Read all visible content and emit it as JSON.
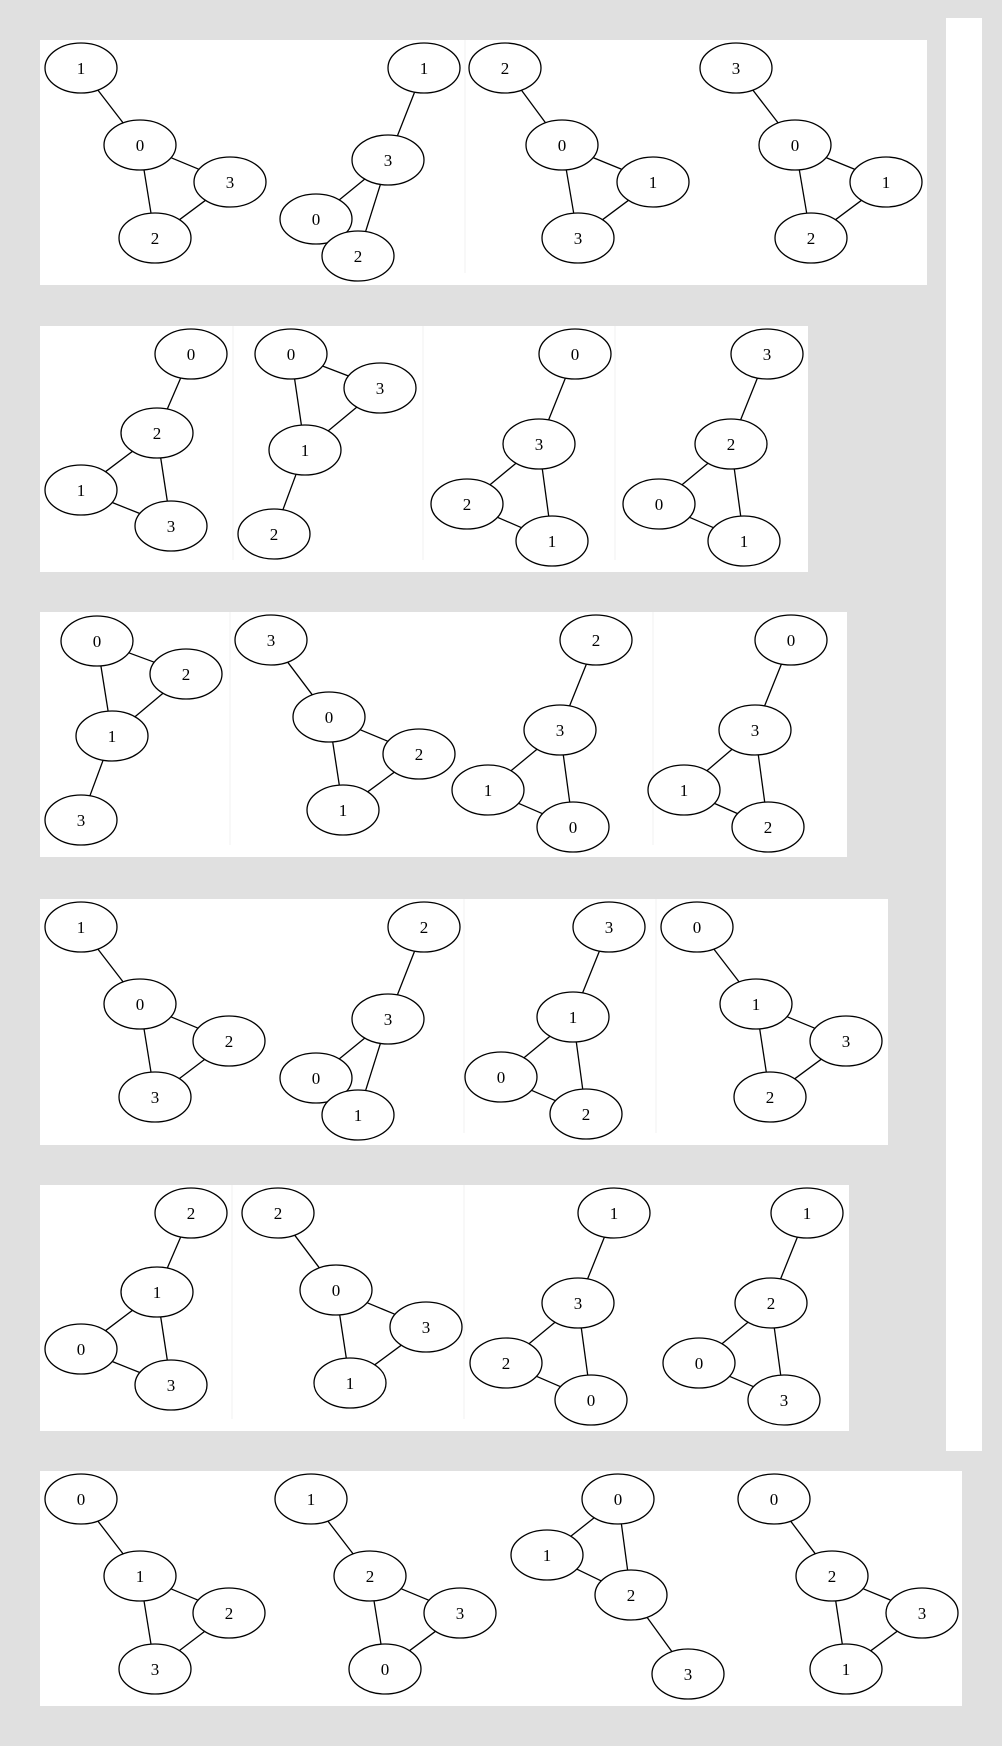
{
  "rows": [
    {
      "graphs": [
        {
          "nodes": [
            {
              "id": "a",
              "label": "1"
            },
            {
              "id": "b",
              "label": "0"
            },
            {
              "id": "c",
              "label": "3"
            },
            {
              "id": "d",
              "label": "2"
            }
          ],
          "edges": [
            [
              "a",
              "b"
            ],
            [
              "b",
              "c"
            ],
            [
              "b",
              "d"
            ],
            [
              "c",
              "d"
            ]
          ]
        },
        {
          "nodes": [
            {
              "id": "a",
              "label": "1"
            },
            {
              "id": "b",
              "label": "3"
            },
            {
              "id": "c",
              "label": "0"
            },
            {
              "id": "d",
              "label": "2"
            }
          ],
          "edges": [
            [
              "a",
              "b"
            ],
            [
              "b",
              "c"
            ],
            [
              "b",
              "d"
            ],
            [
              "c",
              "d"
            ]
          ]
        },
        {
          "nodes": [
            {
              "id": "a",
              "label": "2"
            },
            {
              "id": "b",
              "label": "0"
            },
            {
              "id": "c",
              "label": "1"
            },
            {
              "id": "d",
              "label": "3"
            }
          ],
          "edges": [
            [
              "a",
              "b"
            ],
            [
              "b",
              "c"
            ],
            [
              "b",
              "d"
            ],
            [
              "c",
              "d"
            ]
          ]
        },
        {
          "nodes": [
            {
              "id": "a",
              "label": "3"
            },
            {
              "id": "b",
              "label": "0"
            },
            {
              "id": "c",
              "label": "1"
            },
            {
              "id": "d",
              "label": "2"
            }
          ],
          "edges": [
            [
              "a",
              "b"
            ],
            [
              "b",
              "c"
            ],
            [
              "b",
              "d"
            ],
            [
              "c",
              "d"
            ]
          ]
        }
      ]
    },
    {
      "graphs": [
        {
          "nodes": [
            {
              "id": "a",
              "label": "0"
            },
            {
              "id": "b",
              "label": "2"
            },
            {
              "id": "c",
              "label": "1"
            },
            {
              "id": "d",
              "label": "3"
            }
          ],
          "edges": [
            [
              "a",
              "b"
            ],
            [
              "b",
              "c"
            ],
            [
              "b",
              "d"
            ],
            [
              "c",
              "d"
            ]
          ]
        },
        {
          "nodes": [
            {
              "id": "a",
              "label": "0"
            },
            {
              "id": "b",
              "label": "3"
            },
            {
              "id": "c",
              "label": "1"
            },
            {
              "id": "d",
              "label": "2"
            }
          ],
          "edges": [
            [
              "a",
              "b"
            ],
            [
              "a",
              "c"
            ],
            [
              "b",
              "c"
            ],
            [
              "c",
              "d"
            ]
          ]
        },
        {
          "nodes": [
            {
              "id": "a",
              "label": "0"
            },
            {
              "id": "b",
              "label": "3"
            },
            {
              "id": "c",
              "label": "2"
            },
            {
              "id": "d",
              "label": "1"
            }
          ],
          "edges": [
            [
              "a",
              "b"
            ],
            [
              "b",
              "c"
            ],
            [
              "b",
              "d"
            ],
            [
              "c",
              "d"
            ]
          ]
        },
        {
          "nodes": [
            {
              "id": "a",
              "label": "3"
            },
            {
              "id": "b",
              "label": "2"
            },
            {
              "id": "c",
              "label": "0"
            },
            {
              "id": "d",
              "label": "1"
            }
          ],
          "edges": [
            [
              "a",
              "b"
            ],
            [
              "b",
              "c"
            ],
            [
              "b",
              "d"
            ],
            [
              "c",
              "d"
            ]
          ]
        }
      ]
    },
    {
      "graphs": [
        {
          "nodes": [
            {
              "id": "a",
              "label": "0"
            },
            {
              "id": "b",
              "label": "2"
            },
            {
              "id": "c",
              "label": "1"
            },
            {
              "id": "d",
              "label": "3"
            }
          ],
          "edges": [
            [
              "a",
              "b"
            ],
            [
              "a",
              "c"
            ],
            [
              "b",
              "c"
            ],
            [
              "c",
              "d"
            ]
          ]
        },
        {
          "nodes": [
            {
              "id": "a",
              "label": "3"
            },
            {
              "id": "b",
              "label": "0"
            },
            {
              "id": "c",
              "label": "2"
            },
            {
              "id": "d",
              "label": "1"
            }
          ],
          "edges": [
            [
              "a",
              "b"
            ],
            [
              "b",
              "c"
            ],
            [
              "b",
              "d"
            ],
            [
              "c",
              "d"
            ]
          ]
        },
        {
          "nodes": [
            {
              "id": "a",
              "label": "2"
            },
            {
              "id": "b",
              "label": "3"
            },
            {
              "id": "c",
              "label": "1"
            },
            {
              "id": "d",
              "label": "0"
            }
          ],
          "edges": [
            [
              "a",
              "b"
            ],
            [
              "b",
              "c"
            ],
            [
              "b",
              "d"
            ],
            [
              "c",
              "d"
            ]
          ]
        },
        {
          "nodes": [
            {
              "id": "a",
              "label": "0"
            },
            {
              "id": "b",
              "label": "3"
            },
            {
              "id": "c",
              "label": "1"
            },
            {
              "id": "d",
              "label": "2"
            }
          ],
          "edges": [
            [
              "a",
              "b"
            ],
            [
              "b",
              "c"
            ],
            [
              "b",
              "d"
            ],
            [
              "c",
              "d"
            ]
          ]
        }
      ]
    },
    {
      "graphs": [
        {
          "nodes": [
            {
              "id": "a",
              "label": "1"
            },
            {
              "id": "b",
              "label": "0"
            },
            {
              "id": "c",
              "label": "2"
            },
            {
              "id": "d",
              "label": "3"
            }
          ],
          "edges": [
            [
              "a",
              "b"
            ],
            [
              "b",
              "c"
            ],
            [
              "b",
              "d"
            ],
            [
              "c",
              "d"
            ]
          ]
        },
        {
          "nodes": [
            {
              "id": "a",
              "label": "2"
            },
            {
              "id": "b",
              "label": "3"
            },
            {
              "id": "c",
              "label": "0"
            },
            {
              "id": "d",
              "label": "1"
            }
          ],
          "edges": [
            [
              "a",
              "b"
            ],
            [
              "b",
              "c"
            ],
            [
              "b",
              "d"
            ],
            [
              "c",
              "d"
            ]
          ]
        },
        {
          "nodes": [
            {
              "id": "a",
              "label": "3"
            },
            {
              "id": "b",
              "label": "1"
            },
            {
              "id": "c",
              "label": "0"
            },
            {
              "id": "d",
              "label": "2"
            }
          ],
          "edges": [
            [
              "a",
              "b"
            ],
            [
              "b",
              "c"
            ],
            [
              "b",
              "d"
            ],
            [
              "c",
              "d"
            ]
          ]
        },
        {
          "nodes": [
            {
              "id": "a",
              "label": "0"
            },
            {
              "id": "b",
              "label": "1"
            },
            {
              "id": "c",
              "label": "3"
            },
            {
              "id": "d",
              "label": "2"
            }
          ],
          "edges": [
            [
              "a",
              "b"
            ],
            [
              "b",
              "c"
            ],
            [
              "b",
              "d"
            ],
            [
              "c",
              "d"
            ]
          ]
        }
      ]
    },
    {
      "graphs": [
        {
          "nodes": [
            {
              "id": "a",
              "label": "2"
            },
            {
              "id": "b",
              "label": "1"
            },
            {
              "id": "c",
              "label": "0"
            },
            {
              "id": "d",
              "label": "3"
            }
          ],
          "edges": [
            [
              "a",
              "b"
            ],
            [
              "b",
              "c"
            ],
            [
              "b",
              "d"
            ],
            [
              "c",
              "d"
            ]
          ]
        },
        {
          "nodes": [
            {
              "id": "a",
              "label": "2"
            },
            {
              "id": "b",
              "label": "0"
            },
            {
              "id": "c",
              "label": "3"
            },
            {
              "id": "d",
              "label": "1"
            }
          ],
          "edges": [
            [
              "a",
              "b"
            ],
            [
              "b",
              "c"
            ],
            [
              "b",
              "d"
            ],
            [
              "c",
              "d"
            ]
          ]
        },
        {
          "nodes": [
            {
              "id": "a",
              "label": "1"
            },
            {
              "id": "b",
              "label": "3"
            },
            {
              "id": "c",
              "label": "2"
            },
            {
              "id": "d",
              "label": "0"
            }
          ],
          "edges": [
            [
              "a",
              "b"
            ],
            [
              "b",
              "c"
            ],
            [
              "b",
              "d"
            ],
            [
              "c",
              "d"
            ]
          ]
        },
        {
          "nodes": [
            {
              "id": "a",
              "label": "1"
            },
            {
              "id": "b",
              "label": "2"
            },
            {
              "id": "c",
              "label": "0"
            },
            {
              "id": "d",
              "label": "3"
            }
          ],
          "edges": [
            [
              "a",
              "b"
            ],
            [
              "b",
              "c"
            ],
            [
              "b",
              "d"
            ],
            [
              "c",
              "d"
            ]
          ]
        }
      ]
    },
    {
      "graphs": [
        {
          "nodes": [
            {
              "id": "a",
              "label": "0"
            },
            {
              "id": "b",
              "label": "1"
            },
            {
              "id": "c",
              "label": "2"
            },
            {
              "id": "d",
              "label": "3"
            }
          ],
          "edges": [
            [
              "a",
              "b"
            ],
            [
              "b",
              "c"
            ],
            [
              "b",
              "d"
            ],
            [
              "c",
              "d"
            ]
          ]
        },
        {
          "nodes": [
            {
              "id": "a",
              "label": "1"
            },
            {
              "id": "b",
              "label": "2"
            },
            {
              "id": "c",
              "label": "3"
            },
            {
              "id": "d",
              "label": "0"
            }
          ],
          "edges": [
            [
              "a",
              "b"
            ],
            [
              "b",
              "c"
            ],
            [
              "b",
              "d"
            ],
            [
              "c",
              "d"
            ]
          ]
        },
        {
          "nodes": [
            {
              "id": "a",
              "label": "0"
            },
            {
              "id": "b",
              "label": "1"
            },
            {
              "id": "c",
              "label": "2"
            },
            {
              "id": "d",
              "label": "3"
            }
          ],
          "edges": [
            [
              "a",
              "b"
            ],
            [
              "a",
              "c"
            ],
            [
              "b",
              "c"
            ],
            [
              "c",
              "d"
            ]
          ]
        },
        {
          "nodes": [
            {
              "id": "a",
              "label": "0"
            },
            {
              "id": "b",
              "label": "2"
            },
            {
              "id": "c",
              "label": "3"
            },
            {
              "id": "d",
              "label": "1"
            }
          ],
          "edges": [
            [
              "a",
              "b"
            ],
            [
              "b",
              "c"
            ],
            [
              "b",
              "d"
            ],
            [
              "c",
              "d"
            ]
          ]
        }
      ]
    }
  ]
}
